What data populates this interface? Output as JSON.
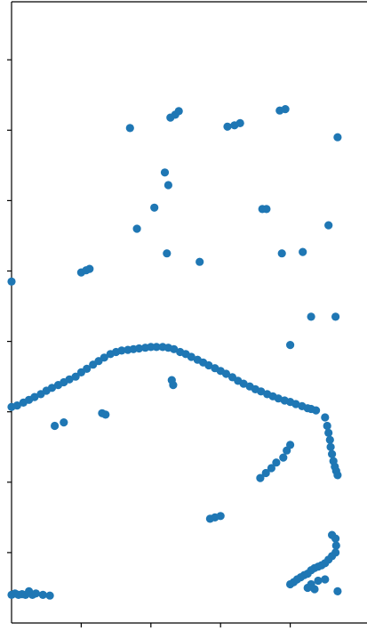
{
  "chart_data": {
    "type": "scatter",
    "title": "",
    "xlabel": "",
    "ylabel": "",
    "xlim": [
      0,
      5
    ],
    "ylim": [
      0,
      8.6
    ],
    "grid": false,
    "legend": "none",
    "x_ticks": [
      1,
      2,
      3,
      4
    ],
    "y_ticks": [
      1,
      2,
      3,
      4,
      5,
      6,
      7,
      8
    ],
    "tick_labels_visible": false,
    "spines": {
      "left": true,
      "top": true,
      "bottom": true,
      "right": false
    },
    "series": [
      {
        "color": "#1f77b4",
        "points": [
          [
            0.0,
            3.07
          ],
          [
            0.08,
            3.09
          ],
          [
            0.17,
            3.13
          ],
          [
            0.25,
            3.17
          ],
          [
            0.33,
            3.21
          ],
          [
            0.42,
            3.25
          ],
          [
            0.5,
            3.3
          ],
          [
            0.58,
            3.34
          ],
          [
            0.67,
            3.38
          ],
          [
            0.75,
            3.42
          ],
          [
            0.83,
            3.46
          ],
          [
            0.92,
            3.5
          ],
          [
            1.0,
            3.56
          ],
          [
            1.08,
            3.61
          ],
          [
            1.17,
            3.67
          ],
          [
            1.25,
            3.72
          ],
          [
            1.33,
            3.77
          ],
          [
            1.42,
            3.82
          ],
          [
            1.5,
            3.85
          ],
          [
            1.58,
            3.87
          ],
          [
            1.67,
            3.88
          ],
          [
            1.75,
            3.89
          ],
          [
            1.83,
            3.9
          ],
          [
            1.92,
            3.91
          ],
          [
            2.0,
            3.92
          ],
          [
            2.08,
            3.92
          ],
          [
            2.17,
            3.92
          ],
          [
            2.25,
            3.91
          ],
          [
            2.33,
            3.89
          ],
          [
            2.42,
            3.85
          ],
          [
            2.5,
            3.82
          ],
          [
            2.58,
            3.78
          ],
          [
            2.67,
            3.74
          ],
          [
            2.75,
            3.7
          ],
          [
            2.83,
            3.66
          ],
          [
            2.92,
            3.62
          ],
          [
            3.0,
            3.58
          ],
          [
            3.08,
            3.54
          ],
          [
            3.17,
            3.49
          ],
          [
            3.25,
            3.44
          ],
          [
            3.33,
            3.4
          ],
          [
            3.42,
            3.36
          ],
          [
            3.5,
            3.32
          ],
          [
            3.58,
            3.29
          ],
          [
            3.67,
            3.25
          ],
          [
            3.75,
            3.22
          ],
          [
            3.83,
            3.19
          ],
          [
            3.92,
            3.16
          ],
          [
            4.0,
            3.14
          ],
          [
            4.08,
            3.11
          ],
          [
            4.17,
            3.08
          ],
          [
            4.25,
            3.05
          ],
          [
            4.3,
            3.04
          ],
          [
            4.37,
            3.02
          ],
          [
            4.5,
            2.92
          ],
          [
            4.53,
            2.8
          ],
          [
            4.55,
            2.7
          ],
          [
            4.57,
            2.6
          ],
          [
            4.58,
            2.5
          ],
          [
            4.6,
            2.4
          ],
          [
            4.62,
            2.3
          ],
          [
            4.64,
            2.22
          ],
          [
            4.66,
            2.16
          ],
          [
            4.68,
            2.1
          ],
          [
            4.0,
            2.53
          ],
          [
            3.95,
            2.45
          ],
          [
            3.9,
            2.35
          ],
          [
            3.8,
            2.28
          ],
          [
            3.73,
            2.2
          ],
          [
            3.65,
            2.13
          ],
          [
            3.57,
            2.06
          ],
          [
            4.6,
            1.25
          ],
          [
            4.65,
            1.2
          ],
          [
            4.66,
            1.1
          ],
          [
            4.65,
            1.0
          ],
          [
            4.6,
            0.95
          ],
          [
            4.55,
            0.9
          ],
          [
            4.5,
            0.85
          ],
          [
            4.45,
            0.82
          ],
          [
            4.4,
            0.8
          ],
          [
            4.35,
            0.78
          ],
          [
            4.3,
            0.75
          ],
          [
            4.25,
            0.7
          ],
          [
            4.2,
            0.68
          ],
          [
            4.15,
            0.65
          ],
          [
            4.1,
            0.62
          ],
          [
            4.05,
            0.58
          ],
          [
            4.0,
            0.55
          ],
          [
            4.25,
            0.5
          ],
          [
            4.35,
            0.48
          ],
          [
            4.5,
            0.62
          ],
          [
            4.68,
            0.45
          ],
          [
            4.3,
            0.55
          ],
          [
            4.4,
            0.6
          ],
          [
            0.0,
            0.4
          ],
          [
            0.05,
            0.42
          ],
          [
            0.1,
            0.4
          ],
          [
            0.15,
            0.41
          ],
          [
            0.2,
            0.4
          ],
          [
            0.25,
            0.45
          ],
          [
            0.3,
            0.4
          ],
          [
            0.35,
            0.42
          ],
          [
            0.45,
            0.4
          ],
          [
            0.55,
            0.39
          ],
          [
            2.85,
            1.48
          ],
          [
            2.92,
            1.5
          ],
          [
            3.0,
            1.52
          ],
          [
            0.62,
            2.8
          ],
          [
            0.75,
            2.85
          ],
          [
            1.3,
            2.98
          ],
          [
            1.35,
            2.96
          ],
          [
            1.0,
            4.98
          ],
          [
            1.07,
            5.01
          ],
          [
            1.12,
            5.03
          ],
          [
            0.0,
            4.85
          ],
          [
            1.7,
            7.03
          ],
          [
            2.28,
            7.18
          ],
          [
            2.35,
            7.22
          ],
          [
            2.4,
            7.27
          ],
          [
            3.1,
            7.05
          ],
          [
            3.2,
            7.07
          ],
          [
            3.28,
            7.1
          ],
          [
            3.85,
            7.28
          ],
          [
            3.93,
            7.3
          ],
          [
            4.68,
            6.9
          ],
          [
            2.2,
            6.4
          ],
          [
            2.25,
            6.22
          ],
          [
            2.05,
            5.9
          ],
          [
            1.8,
            5.6
          ],
          [
            3.6,
            5.88
          ],
          [
            3.66,
            5.88
          ],
          [
            4.55,
            5.65
          ],
          [
            2.23,
            5.25
          ],
          [
            2.7,
            5.13
          ],
          [
            3.88,
            5.25
          ],
          [
            4.18,
            5.27
          ],
          [
            4.3,
            4.35
          ],
          [
            4.65,
            4.35
          ],
          [
            4.0,
            3.95
          ],
          [
            2.3,
            3.45
          ],
          [
            2.32,
            3.38
          ]
        ]
      }
    ]
  }
}
